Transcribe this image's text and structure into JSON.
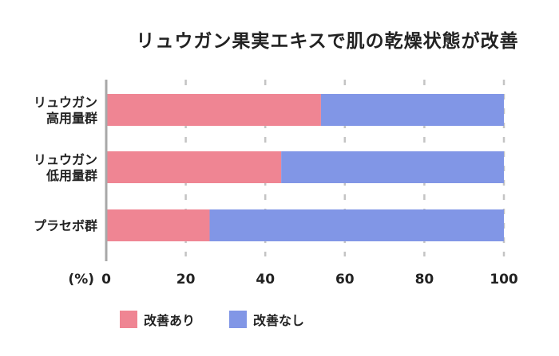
{
  "chart_data": {
    "type": "bar",
    "orientation": "horizontal",
    "stacked": true,
    "title": "リュウガン果実エキスで肌の乾燥状態が改善",
    "unit_label": "(%)",
    "xlim": [
      0,
      100
    ],
    "xticks": [
      0,
      20,
      40,
      60,
      80,
      100
    ],
    "grid": "dashed vertical",
    "legend_position": "bottom-left",
    "categories": [
      [
        "リュウガン",
        "高用量群"
      ],
      [
        "リュウガン",
        "低用量群"
      ],
      [
        "プラセボ群"
      ]
    ],
    "series": [
      {
        "name": "改善あり",
        "color": "#ef8593",
        "values": [
          54,
          44,
          26
        ]
      },
      {
        "name": "改善なし",
        "color": "#8196e6",
        "values": [
          46,
          56,
          74
        ]
      }
    ]
  }
}
